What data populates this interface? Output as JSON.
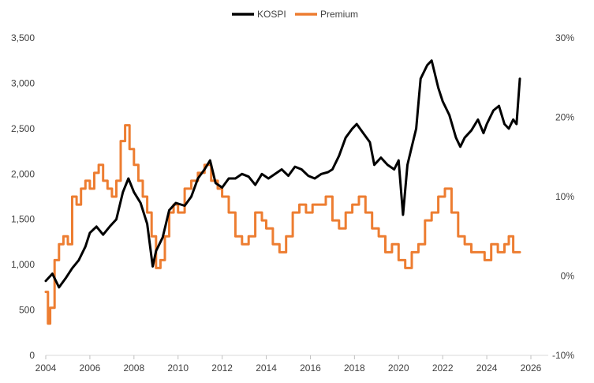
{
  "chart_data": {
    "type": "line",
    "title": "",
    "xlabel": "",
    "ylabel": "",
    "legend_position": "top-center",
    "grid": false,
    "x_ticks": [
      "2004",
      "2006",
      "2008",
      "2010",
      "2012",
      "2014",
      "2016",
      "2018",
      "2020",
      "2022",
      "2024",
      "2026"
    ],
    "y_left": {
      "range": [
        0,
        3500
      ],
      "ticks": [
        "0",
        "500",
        "1,000",
        "1,500",
        "2,000",
        "2,500",
        "3,000",
        "3,500"
      ],
      "tick_values": [
        0,
        500,
        1000,
        1500,
        2000,
        2500,
        3000,
        3500
      ]
    },
    "y_right": {
      "range": [
        -10,
        30
      ],
      "ticks": [
        "-10%",
        "0%",
        "10%",
        "20%",
        "30%"
      ],
      "tick_values": [
        -10,
        0,
        10,
        20,
        30
      ]
    },
    "x_range": [
      2004,
      2026
    ],
    "series": [
      {
        "name": "KOSPI",
        "axis": "left",
        "color": "#000000",
        "x": [
          2004.0,
          2004.3,
          2004.6,
          2004.9,
          2005.2,
          2005.5,
          2005.8,
          2006.0,
          2006.3,
          2006.6,
          2006.9,
          2007.2,
          2007.5,
          2007.75,
          2008.0,
          2008.3,
          2008.6,
          2008.85,
          2009.0,
          2009.3,
          2009.6,
          2009.9,
          2010.3,
          2010.6,
          2010.9,
          2011.2,
          2011.45,
          2011.7,
          2012.0,
          2012.3,
          2012.6,
          2012.9,
          2013.2,
          2013.5,
          2013.8,
          2014.1,
          2014.4,
          2014.7,
          2015.0,
          2015.3,
          2015.6,
          2015.9,
          2016.2,
          2016.5,
          2016.8,
          2017.0,
          2017.3,
          2017.6,
          2017.9,
          2018.1,
          2018.4,
          2018.7,
          2018.9,
          2019.2,
          2019.5,
          2019.8,
          2020.0,
          2020.2,
          2020.4,
          2020.6,
          2020.8,
          2021.0,
          2021.3,
          2021.5,
          2021.8,
          2022.0,
          2022.3,
          2022.6,
          2022.8,
          2023.0,
          2023.3,
          2023.6,
          2023.85,
          2024.0,
          2024.3,
          2024.55,
          2024.8,
          2025.0,
          2025.2,
          2025.35,
          2025.5
        ],
        "values": [
          820,
          900,
          750,
          850,
          960,
          1050,
          1200,
          1350,
          1420,
          1330,
          1420,
          1500,
          1800,
          1950,
          1800,
          1680,
          1450,
          980,
          1150,
          1300,
          1600,
          1680,
          1650,
          1750,
          1950,
          2050,
          2150,
          1900,
          1850,
          1950,
          1950,
          2000,
          1970,
          1880,
          2000,
          1950,
          2000,
          2050,
          1980,
          2080,
          2050,
          1980,
          1950,
          2000,
          2020,
          2050,
          2200,
          2400,
          2500,
          2550,
          2450,
          2350,
          2100,
          2180,
          2100,
          2050,
          2150,
          1550,
          2100,
          2300,
          2500,
          3050,
          3200,
          3250,
          2950,
          2800,
          2650,
          2400,
          2300,
          2400,
          2480,
          2600,
          2450,
          2550,
          2700,
          2750,
          2550,
          2500,
          2600,
          2550,
          3050
        ]
      },
      {
        "name": "Premium",
        "axis": "right",
        "color": "#ED7D31",
        "x": [
          2004.0,
          2004.1,
          2004.2,
          2004.4,
          2004.6,
          2004.8,
          2005.0,
          2005.2,
          2005.4,
          2005.6,
          2005.8,
          2006.0,
          2006.2,
          2006.4,
          2006.6,
          2006.8,
          2007.0,
          2007.2,
          2007.4,
          2007.6,
          2007.8,
          2008.0,
          2008.2,
          2008.4,
          2008.6,
          2008.8,
          2009.0,
          2009.2,
          2009.4,
          2009.6,
          2009.8,
          2010.0,
          2010.3,
          2010.6,
          2010.9,
          2011.2,
          2011.5,
          2011.8,
          2012.0,
          2012.3,
          2012.6,
          2012.9,
          2013.2,
          2013.5,
          2013.8,
          2014.0,
          2014.3,
          2014.6,
          2014.9,
          2015.2,
          2015.5,
          2015.8,
          2016.1,
          2016.4,
          2016.7,
          2017.0,
          2017.3,
          2017.6,
          2017.9,
          2018.2,
          2018.5,
          2018.8,
          2019.1,
          2019.4,
          2019.7,
          2020.0,
          2020.3,
          2020.6,
          2020.9,
          2021.2,
          2021.5,
          2021.8,
          2022.1,
          2022.4,
          2022.7,
          2023.0,
          2023.3,
          2023.6,
          2023.9,
          2024.2,
          2024.5,
          2024.8,
          2025.0,
          2025.2,
          2025.5
        ],
        "values": [
          -2,
          -6,
          -4,
          2,
          4,
          5,
          4,
          10,
          9,
          11,
          12,
          11,
          13,
          14,
          12,
          11,
          10,
          12,
          17,
          19,
          16,
          14,
          12,
          10,
          8,
          5,
          1,
          2,
          5,
          8,
          9,
          8,
          11,
          12,
          13,
          14,
          12,
          11,
          10,
          8,
          5,
          4,
          5,
          8,
          7,
          6,
          4,
          3,
          5,
          8,
          9,
          8,
          9,
          9,
          10,
          7,
          6,
          8,
          9,
          10,
          8,
          6,
          5,
          3,
          4,
          2,
          1,
          3,
          4,
          7,
          8,
          10,
          11,
          8,
          5,
          4,
          3,
          3,
          2,
          4,
          3,
          4,
          5,
          3,
          3
        ]
      }
    ]
  }
}
